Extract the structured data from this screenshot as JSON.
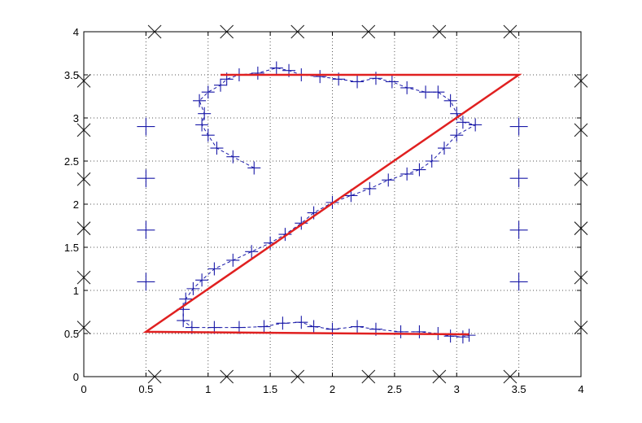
{
  "chart_data": {
    "type": "scatter",
    "title": "",
    "xlabel": "",
    "ylabel": "",
    "xlim": [
      0,
      4
    ],
    "ylim": [
      0,
      4
    ],
    "grid": true,
    "x_ticks": [
      "0",
      "0.5",
      "1",
      "1.5",
      "2",
      "2.5",
      "3",
      "3.5",
      "4"
    ],
    "y_ticks": [
      "0",
      "0.5",
      "1",
      "1.5",
      "2",
      "2.5",
      "3",
      "3.5",
      "4"
    ],
    "colors": {
      "trace": "#1a1aa8",
      "template": "#e02020",
      "markers": "#222222",
      "grid": "#555555"
    },
    "series": [
      {
        "style": "dashed-line-plus-markers",
        "points": [
          [
            1.37,
            2.42
          ],
          [
            1.2,
            2.55
          ],
          [
            1.07,
            2.65
          ],
          [
            1.0,
            2.8
          ],
          [
            0.95,
            2.92
          ],
          [
            0.97,
            3.05
          ],
          [
            0.93,
            3.2
          ],
          [
            1.0,
            3.3
          ],
          [
            1.1,
            3.38
          ],
          [
            1.15,
            3.45
          ],
          [
            1.25,
            3.5
          ],
          [
            1.4,
            3.52
          ],
          [
            1.55,
            3.58
          ],
          [
            1.65,
            3.55
          ],
          [
            1.75,
            3.5
          ],
          [
            1.9,
            3.48
          ],
          [
            2.05,
            3.45
          ],
          [
            2.2,
            3.42
          ],
          [
            2.35,
            3.46
          ],
          [
            2.48,
            3.42
          ],
          [
            2.6,
            3.35
          ],
          [
            2.75,
            3.3
          ],
          [
            2.85,
            3.3
          ],
          [
            2.95,
            3.2
          ],
          [
            3.0,
            3.05
          ],
          [
            3.05,
            2.95
          ],
          [
            3.15,
            2.92
          ],
          [
            3.0,
            2.8
          ],
          [
            2.9,
            2.65
          ],
          [
            2.8,
            2.5
          ],
          [
            2.7,
            2.4
          ],
          [
            2.6,
            2.35
          ],
          [
            2.45,
            2.28
          ],
          [
            2.3,
            2.18
          ],
          [
            2.15,
            2.1
          ],
          [
            2.0,
            2.02
          ],
          [
            1.85,
            1.9
          ],
          [
            1.75,
            1.78
          ],
          [
            1.62,
            1.65
          ],
          [
            1.5,
            1.55
          ],
          [
            1.35,
            1.45
          ],
          [
            1.2,
            1.35
          ],
          [
            1.05,
            1.25
          ],
          [
            0.95,
            1.12
          ],
          [
            0.88,
            1.02
          ],
          [
            0.82,
            0.9
          ],
          [
            0.8,
            0.78
          ],
          [
            0.8,
            0.65
          ],
          [
            0.87,
            0.57
          ],
          [
            1.05,
            0.57
          ],
          [
            1.25,
            0.57
          ],
          [
            1.45,
            0.58
          ],
          [
            1.6,
            0.62
          ],
          [
            1.75,
            0.63
          ],
          [
            1.85,
            0.58
          ],
          [
            2.0,
            0.55
          ],
          [
            2.2,
            0.58
          ],
          [
            2.35,
            0.55
          ],
          [
            2.55,
            0.52
          ],
          [
            2.7,
            0.52
          ],
          [
            2.85,
            0.5
          ],
          [
            2.95,
            0.47
          ],
          [
            3.05,
            0.46
          ],
          [
            3.1,
            0.48
          ]
        ]
      },
      {
        "style": "solid-line",
        "points": [
          [
            1.1,
            3.5
          ],
          [
            3.5,
            3.5
          ],
          [
            0.5,
            0.52
          ],
          [
            3.1,
            0.49
          ]
        ]
      },
      {
        "style": "plus-markers",
        "points": [
          [
            0.5,
            2.9
          ],
          [
            0.5,
            2.3
          ],
          [
            0.5,
            1.7
          ],
          [
            0.5,
            1.1
          ],
          [
            3.5,
            2.9
          ],
          [
            3.5,
            2.3
          ],
          [
            3.5,
            1.7
          ],
          [
            3.5,
            1.1
          ]
        ]
      },
      {
        "style": "x-markers",
        "points": [
          [
            0.57,
            4.0
          ],
          [
            1.15,
            4.0
          ],
          [
            1.72,
            4.0
          ],
          [
            2.29,
            4.0
          ],
          [
            2.86,
            4.0
          ],
          [
            3.43,
            4.0
          ],
          [
            0.57,
            0.0
          ],
          [
            1.15,
            0.0
          ],
          [
            1.72,
            0.0
          ],
          [
            2.29,
            0.0
          ],
          [
            2.86,
            0.0
          ],
          [
            3.43,
            0.0
          ],
          [
            0.0,
            3.43
          ],
          [
            0.0,
            2.86
          ],
          [
            0.0,
            2.29
          ],
          [
            0.0,
            1.72
          ],
          [
            0.0,
            1.15
          ],
          [
            0.0,
            0.57
          ],
          [
            4.0,
            3.43
          ],
          [
            4.0,
            2.86
          ],
          [
            4.0,
            2.29
          ],
          [
            4.0,
            1.72
          ],
          [
            4.0,
            1.15
          ],
          [
            4.0,
            0.57
          ]
        ]
      }
    ]
  }
}
